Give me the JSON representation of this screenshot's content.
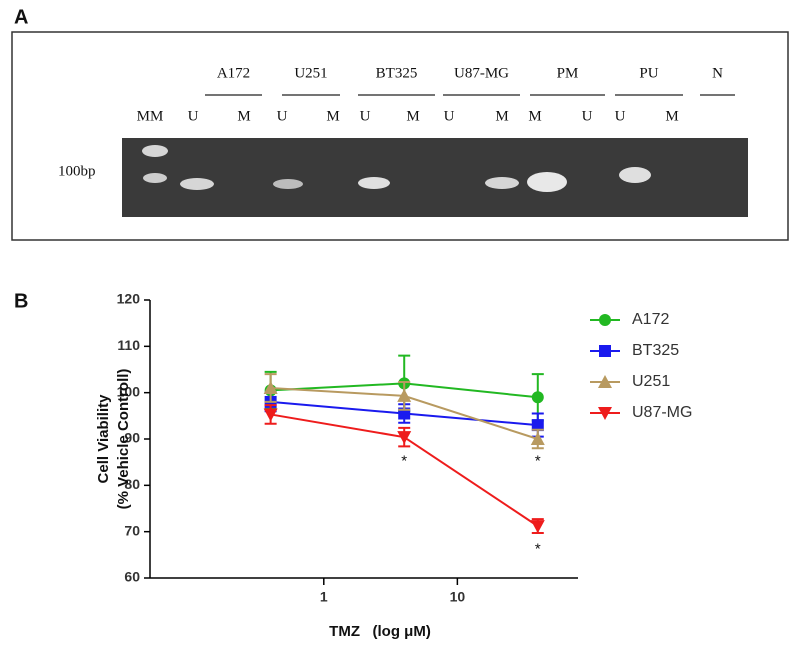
{
  "panel_a": {
    "label": "A",
    "marker": "100bp",
    "groups": [
      "A172",
      "U251",
      "BT325",
      "U87-MG",
      "PM",
      "PU",
      "N"
    ],
    "lanes": [
      "MM",
      "U",
      "M",
      "U",
      "M",
      "U",
      "M",
      "U",
      "M",
      "M",
      "U",
      "U",
      "M"
    ]
  },
  "chart_data": {
    "type": "line",
    "panel_label": "B",
    "xlabel": "TMZ   (log μM)",
    "ylabel": [
      "Cell Viability",
      "(% Vehicle Controll)"
    ],
    "x": [
      0.4,
      4,
      40
    ],
    "xlog": true,
    "xlim": [
      0.05,
      80
    ],
    "xticks": [
      1,
      10
    ],
    "ylim": [
      60,
      120
    ],
    "yticks": [
      60,
      70,
      80,
      90,
      100,
      110,
      120
    ],
    "series": [
      {
        "name": "A172",
        "color": "#22b822",
        "marker": "circle",
        "values": [
          100.5,
          102,
          99
        ],
        "errors": [
          4,
          6,
          5
        ]
      },
      {
        "name": "BT325",
        "color": "#1a1aee",
        "marker": "square",
        "values": [
          98,
          95.5,
          93
        ],
        "errors": [
          2,
          2,
          2.5
        ]
      },
      {
        "name": "U251",
        "color": "#b89a60",
        "marker": "triangle-up",
        "values": [
          101,
          99.3,
          90
        ],
        "errors": [
          3,
          3,
          2
        ]
      },
      {
        "name": "U87-MG",
        "color": "#ee1c1c",
        "marker": "triangle-down",
        "values": [
          95.3,
          90.4,
          71.2
        ],
        "errors": [
          2,
          2,
          1.5
        ]
      }
    ],
    "legend": "upper right",
    "annotations": [
      {
        "text": "*",
        "x": 4,
        "y": 86
      },
      {
        "text": "*",
        "x": 40,
        "y": 86
      },
      {
        "text": "*",
        "x": 40,
        "y": 67
      }
    ]
  }
}
